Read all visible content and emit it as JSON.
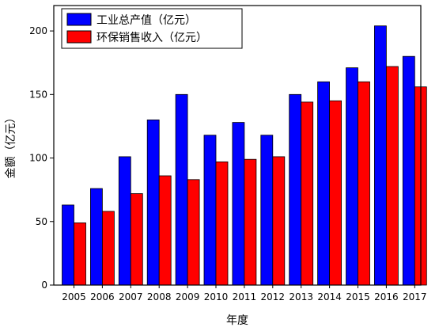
{
  "chart_data": {
    "type": "bar",
    "xlabel": "年度",
    "ylabel": "金额（亿元）",
    "categories": [
      "2005",
      "2006",
      "2007",
      "2008",
      "2009",
      "2010",
      "2011",
      "2012",
      "2013",
      "2014",
      "2015",
      "2016",
      "2017"
    ],
    "ylim": [
      0,
      220
    ],
    "yticks": [
      0,
      50,
      100,
      150,
      200
    ],
    "grid": false,
    "legend_position": "top-left",
    "series": [
      {
        "name": "工业总产值（亿元）",
        "color": "#0000ff",
        "values": [
          63,
          76,
          101,
          130,
          150,
          118,
          128,
          118,
          150,
          160,
          171,
          204,
          180
        ]
      },
      {
        "name": "环保销售收入（亿元）",
        "color": "#ff0000",
        "values": [
          49,
          58,
          72,
          86,
          83,
          97,
          99,
          101,
          144,
          145,
          160,
          172,
          156
        ]
      }
    ]
  }
}
